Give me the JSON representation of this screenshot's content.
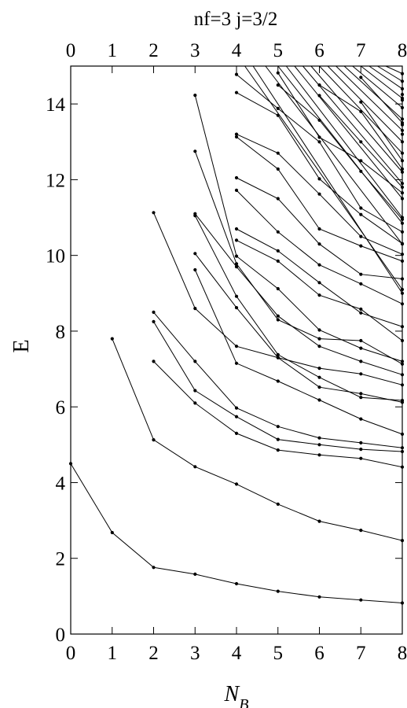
{
  "chart_data": {
    "type": "line",
    "title": "nf=3   j=3/2",
    "xlabel": "N",
    "xlabel_sub": "B",
    "ylabel": "E",
    "xlim": [
      0,
      8
    ],
    "ylim": [
      0,
      15
    ],
    "x_ticks": [
      0,
      1,
      2,
      3,
      4,
      5,
      6,
      7,
      8
    ],
    "x_tick_labels": [
      "0",
      "1",
      "2",
      "3",
      "4",
      "5",
      "6",
      "7",
      "8"
    ],
    "y_ticks": [
      0,
      2,
      4,
      6,
      8,
      10,
      12,
      14
    ],
    "y_tick_labels": [
      "0",
      "2",
      "4",
      "6",
      "8",
      "10",
      "12",
      "14"
    ],
    "grid": false,
    "series": [
      {
        "x": [
          0,
          1,
          2,
          3,
          4,
          5,
          6,
          7,
          8
        ],
        "values": [
          4.5,
          2.68,
          1.76,
          1.58,
          1.33,
          1.13,
          0.98,
          0.9,
          0.82
        ]
      },
      {
        "x": [
          1,
          2,
          3,
          4,
          5,
          6,
          7,
          8
        ],
        "values": [
          7.8,
          5.13,
          4.42,
          3.96,
          3.43,
          2.98,
          2.74,
          2.47
        ]
      },
      {
        "x": [
          2,
          3,
          4,
          5,
          6,
          7,
          8
        ],
        "values": [
          7.2,
          6.1,
          5.3,
          4.86,
          4.73,
          4.64,
          4.41
        ]
      },
      {
        "x": [
          2,
          3,
          4,
          5,
          6,
          7,
          8
        ],
        "values": [
          8.25,
          6.43,
          5.74,
          5.14,
          5.0,
          4.88,
          4.82
        ]
      },
      {
        "x": [
          2,
          3,
          4,
          5,
          6,
          7,
          8
        ],
        "values": [
          8.5,
          7.2,
          5.97,
          5.48,
          5.18,
          5.05,
          4.92
        ]
      },
      {
        "x": [
          2,
          3,
          4,
          5,
          6,
          7,
          8
        ],
        "values": [
          11.13,
          8.6,
          7.6,
          7.3,
          7.02,
          6.87,
          6.58
        ]
      },
      {
        "x": [
          3,
          4,
          5,
          6,
          7,
          8
        ],
        "values": [
          9.62,
          7.15,
          6.68,
          6.18,
          5.68,
          5.28
        ]
      },
      {
        "x": [
          3,
          4,
          5,
          6,
          7,
          8
        ],
        "values": [
          10.05,
          8.62,
          7.3,
          6.52,
          6.35,
          6.12
        ]
      },
      {
        "x": [
          3,
          4,
          5,
          6,
          7,
          8
        ],
        "values": [
          11.05,
          8.92,
          7.38,
          6.78,
          6.25,
          6.17
        ]
      },
      {
        "x": [
          3,
          4,
          5,
          6,
          7,
          8
        ],
        "values": [
          11.1,
          9.7,
          8.4,
          7.6,
          7.2,
          6.85
        ]
      },
      {
        "x": [
          3,
          4,
          5,
          6,
          7,
          8
        ],
        "values": [
          12.75,
          9.78,
          8.3,
          7.8,
          7.75,
          7.13
        ]
      },
      {
        "x": [
          3,
          4,
          5,
          6,
          7,
          8
        ],
        "values": [
          14.23,
          9.98,
          9.12,
          8.03,
          7.55,
          7.2
        ]
      },
      {
        "x": [
          4,
          5,
          6,
          7,
          8
        ],
        "values": [
          10.4,
          9.85,
          8.95,
          8.58,
          7.75
        ]
      },
      {
        "x": [
          4,
          5,
          6,
          7,
          8
        ],
        "values": [
          10.7,
          10.12,
          9.28,
          8.48,
          8.12
        ]
      },
      {
        "x": [
          4,
          5,
          6,
          7,
          8
        ],
        "values": [
          11.72,
          10.62,
          9.75,
          9.25,
          8.72
        ]
      },
      {
        "x": [
          4,
          5,
          6,
          7,
          8
        ],
        "values": [
          12.05,
          11.5,
          10.3,
          9.5,
          9.38
        ]
      },
      {
        "x": [
          4,
          5,
          6,
          7,
          8
        ],
        "values": [
          13.13,
          12.28,
          10.7,
          10.25,
          9.85
        ]
      },
      {
        "x": [
          4,
          5,
          6,
          7,
          8
        ],
        "values": [
          13.2,
          12.7,
          11.62,
          10.5,
          10.03
        ]
      },
      {
        "x": [
          4,
          5,
          6,
          7,
          8
        ],
        "values": [
          14.3,
          13.7,
          12.02,
          11.08,
          10.31
        ]
      },
      {
        "x": [
          4,
          5,
          6,
          7,
          8
        ],
        "values": [
          14.78,
          13.88,
          13.0,
          11.25,
          10.62
        ]
      },
      {
        "x": [
          5,
          6,
          7,
          8
        ],
        "values": [
          14.5,
          13.57,
          12.22,
          10.95
        ]
      },
      {
        "x": [
          5,
          6,
          7,
          8
        ],
        "values": [
          14.82,
          13.12,
          12.5,
          11.65
        ]
      },
      {
        "x": [
          6,
          7,
          8
        ],
        "values": [
          14.22,
          13.0,
          11.8
        ]
      },
      {
        "x": [
          6,
          7,
          8
        ],
        "values": [
          14.5,
          13.8,
          12.28
        ]
      },
      {
        "x": [
          7,
          8
        ],
        "values": [
          14.05,
          12.5
        ]
      },
      {
        "x": [
          7,
          8
        ],
        "values": [
          14.7,
          13.5
        ]
      },
      {
        "x": [
          8
        ],
        "values": [
          13.2
        ]
      },
      {
        "x": [
          8
        ],
        "values": [
          13.45
        ]
      },
      {
        "x": [
          8
        ],
        "values": [
          14.1
        ]
      },
      {
        "x": [
          8
        ],
        "values": [
          14.25
        ]
      },
      {
        "x": [
          4.2,
          8
        ],
        "values": [
          15.0,
          9.1
        ]
      },
      {
        "x": [
          4.4,
          8
        ],
        "values": [
          15.0,
          9.0
        ]
      },
      {
        "x": [
          4.7,
          8
        ],
        "values": [
          15.0,
          10.3
        ]
      },
      {
        "x": [
          5.0,
          8
        ],
        "values": [
          15.0,
          10.85
        ]
      },
      {
        "x": [
          5.2,
          8
        ],
        "values": [
          15.0,
          11.0
        ]
      },
      {
        "x": [
          5.4,
          8
        ],
        "values": [
          15.0,
          11.5
        ]
      },
      {
        "x": [
          5.6,
          8
        ],
        "values": [
          15.0,
          11.9
        ]
      },
      {
        "x": [
          5.8,
          8
        ],
        "values": [
          15.0,
          12.2
        ]
      },
      {
        "x": [
          6.0,
          8
        ],
        "values": [
          15.0,
          12.7
        ]
      },
      {
        "x": [
          6.2,
          8
        ],
        "values": [
          15.0,
          13.0
        ]
      },
      {
        "x": [
          6.4,
          8
        ],
        "values": [
          15.0,
          13.3
        ]
      },
      {
        "x": [
          6.6,
          8
        ],
        "values": [
          15.0,
          13.6
        ]
      },
      {
        "x": [
          6.8,
          8
        ],
        "values": [
          15.0,
          13.9
        ]
      },
      {
        "x": [
          7.0,
          8
        ],
        "values": [
          15.0,
          14.15
        ]
      },
      {
        "x": [
          7.2,
          8
        ],
        "values": [
          15.0,
          14.4
        ]
      },
      {
        "x": [
          7.4,
          8
        ],
        "values": [
          15.0,
          14.6
        ]
      },
      {
        "x": [
          7.6,
          8
        ],
        "values": [
          15.0,
          14.8
        ]
      }
    ]
  }
}
